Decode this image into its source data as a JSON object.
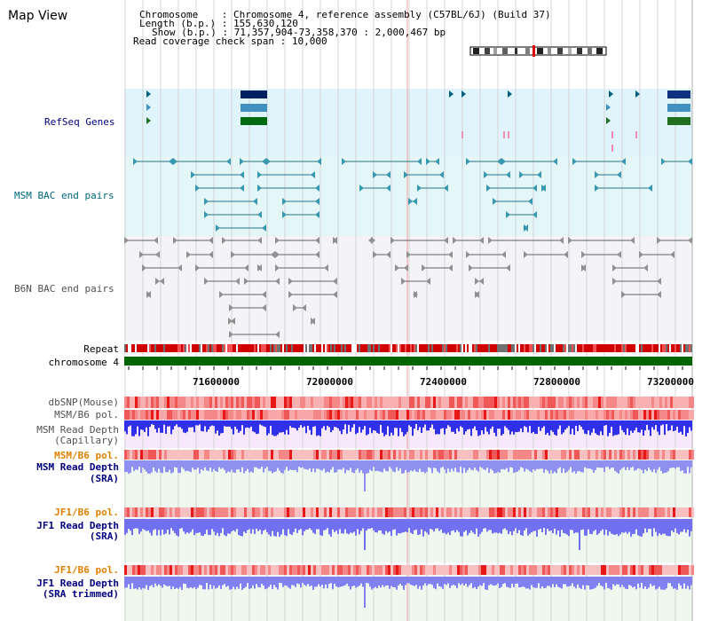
{
  "title": "Map View",
  "info": {
    "chromosome_label": "Chromosome",
    "chromosome_value": "Chromosome 4, reference assembly (C57BL/6J) (Build 37)",
    "length_label": "Length (b.p.)",
    "length_value": "155,630,120",
    "show_label": "Show (b.p.)",
    "show_value": "71,357,904-73,358,370 : 2,000,467 bp",
    "coverage_label": "Read coverage check span",
    "coverage_value": "10,000"
  },
  "tracks": {
    "refseq": "RefSeq Genes",
    "msm_bac": "MSM BAC end pairs",
    "b6n_bac": "B6N BAC end pairs",
    "repeat": "Repeat",
    "chromosome": "chromosome 4",
    "dbsnp": "dbSNP(Mouse)",
    "msm_pol_1": "MSM/B6 pol.",
    "msm_depth_cap_1": "MSM Read Depth",
    "msm_depth_cap_2": "(Capillary)",
    "msm_pol_2": "MSM/B6 pol.",
    "msm_depth_sra_1": "MSM Read Depth",
    "msm_depth_sra_2": "(SRA)",
    "jf1_pol_1": "JF1/B6 pol.",
    "jf1_depth_sra_1": "JF1 Read Depth",
    "jf1_depth_sra_2": "(SRA)",
    "jf1_pol_2": "JF1/B6 pol.",
    "jf1_depth_trim_1": "JF1 Read Depth",
    "jf1_depth_trim_2": "(SRA trimmed)"
  },
  "axis": {
    "ticks": [
      "71600000",
      "72000000",
      "72400000",
      "72800000",
      "73200000"
    ]
  },
  "colors": {
    "navy": "#000080",
    "teal": "#006878",
    "gray": "#505050",
    "orange": "#e08000",
    "blue": "#0000c0"
  }
}
